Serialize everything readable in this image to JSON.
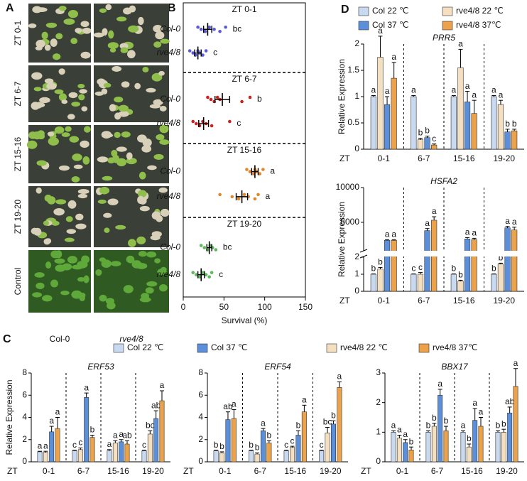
{
  "panel_labels": [
    "A",
    "B",
    "C",
    "D"
  ],
  "panel_a": {
    "rows": [
      "ZT 0-1",
      "ZT 6-7",
      "ZT 15-16",
      "ZT 19-20",
      "Control"
    ],
    "columns": [
      "Col-0",
      "rve4/8"
    ]
  },
  "chart_data": [
    {
      "type": "dot",
      "xlim": [
        0,
        150
      ],
      "xticks": [
        0,
        50,
        100,
        150
      ],
      "xlabel": "Survival (%)",
      "groups": [
        {
          "label": "ZT 0-1",
          "color": "#5a5ad8",
          "rows": [
            {
              "name": "Col-0",
              "points": [
                18,
                22,
                27,
                32,
                38,
                45,
                52
              ],
              "mean": 30,
              "error": 5,
              "letter": "bc"
            },
            {
              "name": "rve4/8",
              "points": [
                8,
                12,
                15,
                18,
                20,
                24,
                28
              ],
              "mean": 18,
              "error": 4,
              "letter": "c"
            }
          ]
        },
        {
          "label": "ZT 6-7",
          "color": "#cc2222",
          "rows": [
            {
              "name": "Col-0",
              "points": [
                30,
                34,
                38,
                42,
                45,
                72,
                82
              ],
              "mean": 48,
              "error": 9,
              "letter": "b"
            },
            {
              "name": "rve4/8",
              "points": [
                12,
                16,
                20,
                24,
                28,
                35,
                57
              ],
              "mean": 25,
              "error": 6,
              "letter": "c"
            }
          ]
        },
        {
          "label": "ZT 15-16",
          "color": "#e0892c",
          "rows": [
            {
              "name": "Col-0",
              "points": [
                78,
                82,
                86,
                88,
                90,
                94,
                98
              ],
              "mean": 88,
              "error": 4,
              "letter": "a"
            },
            {
              "name": "rve4/8",
              "points": [
                45,
                60,
                68,
                75,
                80,
                88,
                92
              ],
              "mean": 72,
              "error": 7,
              "letter": "a"
            }
          ]
        },
        {
          "label": "ZT 19-20",
          "color": "#5cb85c",
          "rows": [
            {
              "name": "Col-0",
              "points": [
                22,
                26,
                30,
                33,
                36,
                40
              ],
              "mean": 32,
              "error": 3,
              "letter": "bc"
            },
            {
              "name": "rve4/8",
              "points": [
                12,
                16,
                20,
                24,
                28,
                32,
                35
              ],
              "mean": 22,
              "error": 4,
              "letter": "c"
            }
          ]
        }
      ]
    },
    {
      "type": "bar",
      "title": "ERF53",
      "xlabel": "ZT",
      "ylabel": "Relative Expression",
      "categories": [
        "0-1",
        "6-7",
        "15-16",
        "19-20"
      ],
      "ylim": [
        0,
        8
      ],
      "yticks": [
        0,
        2,
        4,
        6,
        8
      ],
      "series": [
        {
          "name": "Col 22 ℃",
          "color": "#c9daf0",
          "values": [
            0.9,
            1.0,
            1.0,
            1.0
          ],
          "errors": [
            0.05,
            0.05,
            0.1,
            0.05
          ],
          "letters": [
            "a",
            "c",
            "a",
            "c"
          ]
        },
        {
          "name": "rve4/8 22 ℃",
          "color": "#f4dfc0",
          "values": [
            0.85,
            1.1,
            1.7,
            2.5
          ],
          "errors": [
            0.1,
            0.15,
            0.2,
            0.3
          ],
          "letters": [
            "a",
            "c",
            "a",
            "bc"
          ]
        },
        {
          "name": "Col 37 ℃",
          "color": "#5b8fd9",
          "values": [
            2.7,
            5.8,
            1.8,
            3.9
          ],
          "errors": [
            0.5,
            0.4,
            0.2,
            0.7
          ],
          "letters": [
            "a",
            "a",
            "a",
            "ab"
          ]
        },
        {
          "name": "rve4/8 37℃",
          "color": "#eba24a",
          "values": [
            3.0,
            2.2,
            1.6,
            5.5
          ],
          "errors": [
            1.0,
            0.2,
            0.3,
            0.9
          ],
          "letters": [
            "a",
            "b",
            "ab",
            "a"
          ]
        }
      ]
    },
    {
      "type": "bar",
      "title": "ERF54",
      "xlabel": "ZT",
      "categories": [
        "0-1",
        "6-7",
        "15-16",
        "19-20"
      ],
      "ylim": [
        0,
        8
      ],
      "yticks": [
        0,
        2,
        4,
        6,
        8
      ],
      "series": [
        {
          "color": "#c9daf0",
          "values": [
            1.0,
            1.0,
            1.0,
            1.0
          ],
          "errors": [
            0.05,
            0.05,
            0.05,
            0.05
          ],
          "letters": [
            "b",
            "b",
            "c",
            "c"
          ]
        },
        {
          "color": "#f4dfc0",
          "values": [
            0.8,
            0.7,
            1.3,
            2.6
          ],
          "errors": [
            0.1,
            0.1,
            0.1,
            0.5
          ],
          "letters": [
            "b",
            "b",
            "c",
            "bc"
          ]
        },
        {
          "color": "#5b8fd9",
          "values": [
            3.8,
            2.8,
            2.4,
            3.4
          ],
          "errors": [
            0.7,
            0.2,
            0.4,
            0.3
          ],
          "letters": [
            "ab",
            "a",
            "b",
            "b"
          ]
        },
        {
          "color": "#eba24a",
          "values": [
            3.9,
            1.7,
            4.5,
            6.7
          ],
          "errors": [
            0.8,
            0.2,
            0.6,
            0.5
          ],
          "letters": [
            "a",
            "b",
            "a",
            "a"
          ]
        }
      ]
    },
    {
      "type": "bar",
      "title": "BBX17",
      "xlabel": "ZT",
      "categories": [
        "0-1",
        "6-7",
        "15-16",
        "19-20"
      ],
      "ylim": [
        0,
        3
      ],
      "yticks": [
        0,
        1,
        2,
        3
      ],
      "series": [
        {
          "color": "#c9daf0",
          "values": [
            1.0,
            1.0,
            1.0,
            1.0
          ],
          "errors": [
            0.05,
            0.05,
            0.05,
            0.05
          ],
          "letters": [
            "a",
            "b",
            "a",
            "b"
          ]
        },
        {
          "color": "#f4dfc0",
          "values": [
            0.8,
            1.2,
            0.5,
            1.0
          ],
          "errors": [
            0.1,
            0.1,
            0.1,
            0.1
          ],
          "letters": [
            "a",
            "b",
            "b",
            "b"
          ]
        },
        {
          "color": "#5b8fd9",
          "values": [
            0.65,
            2.25,
            1.4,
            1.65
          ],
          "errors": [
            0.1,
            0.2,
            0.4,
            0.2
          ],
          "letters": [
            "a",
            "a",
            "a",
            "ab"
          ]
        },
        {
          "color": "#eba24a",
          "values": [
            0.4,
            1.05,
            1.2,
            2.55
          ],
          "errors": [
            0.1,
            0.15,
            0.3,
            0.6
          ],
          "letters": [
            "b",
            "b",
            "a",
            "a"
          ]
        }
      ]
    },
    {
      "type": "bar",
      "title": "PRR5",
      "xlabel": "ZT",
      "ylabel": "Relative Expression",
      "categories": [
        "0-1",
        "6-7",
        "15-16",
        "19-20"
      ],
      "ylim": [
        0,
        2
      ],
      "yticks": [
        0,
        0.5,
        1,
        1.5,
        2
      ],
      "series": [
        {
          "name": "Col 22 ℃",
          "color": "#c9daf0",
          "values": [
            1,
            1,
            1,
            1
          ],
          "errors": [
            0.02,
            0.02,
            0.02,
            0.02
          ],
          "letters": [
            "a",
            "a",
            "a",
            "a"
          ]
        },
        {
          "name": "rve4/8 22 ℃",
          "color": "#f4dfc0",
          "values": [
            1.75,
            0.18,
            1.55,
            0.85
          ],
          "errors": [
            0.4,
            0.03,
            0.35,
            0.08
          ],
          "letters": [
            "a",
            "b",
            "a",
            "a"
          ]
        },
        {
          "name": "Col 37 ℃",
          "color": "#5b8fd9",
          "values": [
            0.85,
            0.22,
            0.9,
            0.33
          ],
          "errors": [
            0.15,
            0.03,
            0.2,
            0.05
          ],
          "letters": [
            "a",
            "b",
            "a",
            "b"
          ]
        },
        {
          "name": "rve4/8 37℃",
          "color": "#eba24a",
          "values": [
            1.35,
            0.08,
            0.68,
            0.35
          ],
          "errors": [
            0.3,
            0.02,
            0.25,
            0.03
          ],
          "letters": [
            "a",
            "c",
            "a",
            "b"
          ]
        }
      ]
    },
    {
      "type": "bar",
      "title": "HSFA2",
      "xlabel": "ZT",
      "ylabel": "Relative Expression",
      "categories": [
        "0-1",
        "6-7",
        "15-16",
        "19-20"
      ],
      "ylim": [
        0,
        2
      ],
      "yticks": [
        0,
        1,
        2
      ],
      "upper_ylim": [
        1000,
        10000
      ],
      "upper_yticks": [
        5000,
        10000
      ],
      "series": [
        {
          "color": "#c9daf0",
          "values": [
            1,
            1,
            1,
            1
          ],
          "errors": [
            0.02,
            0.02,
            0.02,
            0.02
          ],
          "letters": [
            "b",
            "c",
            "b",
            "b"
          ]
        },
        {
          "color": "#f4dfc0",
          "values": [
            1.3,
            1.0,
            0.6,
            1.6
          ],
          "errors": [
            0.1,
            0.1,
            0.05,
            0.05
          ],
          "letters": [
            "b",
            "c",
            "b",
            "b"
          ]
        },
        {
          "color": "#5b8fd9",
          "values": [
            2400,
            3800,
            2600,
            4200
          ],
          "errors": [
            100,
            300,
            200,
            200
          ],
          "letters": [
            "a",
            "a",
            "a",
            "a"
          ]
        },
        {
          "color": "#eba24a",
          "values": [
            2400,
            5300,
            2500,
            3900
          ],
          "errors": [
            100,
            500,
            200,
            400
          ],
          "letters": [
            "a",
            "a",
            "a",
            "a"
          ]
        }
      ]
    }
  ]
}
